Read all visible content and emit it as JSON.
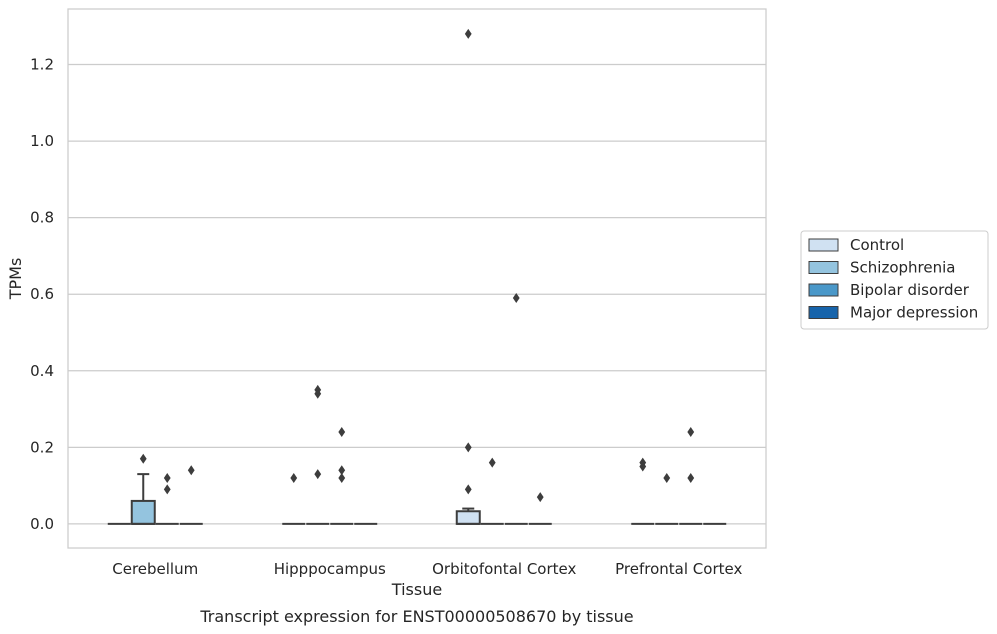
{
  "caption": "Transcript expression for ENST00000508670 by tissue",
  "chart_data": {
    "type": "box",
    "xlabel": "Tissue",
    "ylabel": "TPMs",
    "ylim": [
      -0.063,
      1.345
    ],
    "yticks": [
      0.0,
      0.2,
      0.4,
      0.6,
      0.8,
      1.0,
      1.2
    ],
    "ytick_labels": [
      "0.0",
      "0.2",
      "0.4",
      "0.6",
      "0.8",
      "1.0",
      "1.2"
    ],
    "grid": "horizontal",
    "legend_position": "right",
    "categories": [
      "Cerebellum",
      "Hipppocampus",
      "Orbitofontal Cortex",
      "Prefrontal Cortex"
    ],
    "series": [
      {
        "name": "Control",
        "color": "#d0e1f2",
        "boxes": [
          {
            "q1": 0,
            "median": 0,
            "q3": 0,
            "whislo": 0,
            "whishi": 0,
            "fliers": []
          },
          {
            "q1": 0,
            "median": 0,
            "q3": 0,
            "whislo": 0,
            "whishi": 0,
            "fliers": [
              0.12
            ]
          },
          {
            "q1": 0,
            "median": 0,
            "q3": 0.033,
            "whislo": 0,
            "whishi": 0.04,
            "fliers": [
              1.28,
              0.2,
              0.09
            ]
          },
          {
            "q1": 0,
            "median": 0,
            "q3": 0,
            "whislo": 0,
            "whishi": 0,
            "fliers": [
              0.16,
              0.15
            ]
          }
        ]
      },
      {
        "name": "Schizophrenia",
        "color": "#94c4df",
        "boxes": [
          {
            "q1": 0,
            "median": 0,
            "q3": 0.06,
            "whislo": 0,
            "whishi": 0.13,
            "fliers": [
              0.17
            ]
          },
          {
            "q1": 0,
            "median": 0,
            "q3": 0,
            "whislo": 0,
            "whishi": 0,
            "fliers": [
              0.35,
              0.34,
              0.13
            ]
          },
          {
            "q1": 0,
            "median": 0,
            "q3": 0,
            "whislo": 0,
            "whishi": 0,
            "fliers": [
              0.16
            ]
          },
          {
            "q1": 0,
            "median": 0,
            "q3": 0,
            "whislo": 0,
            "whishi": 0,
            "fliers": [
              0.12
            ]
          }
        ]
      },
      {
        "name": "Bipolar disorder",
        "color": "#4a98c9",
        "boxes": [
          {
            "q1": 0,
            "median": 0,
            "q3": 0,
            "whislo": 0,
            "whishi": 0,
            "fliers": [
              0.12,
              0.09
            ]
          },
          {
            "q1": 0,
            "median": 0,
            "q3": 0,
            "whislo": 0,
            "whishi": 0,
            "fliers": [
              0.24,
              0.14,
              0.12
            ]
          },
          {
            "q1": 0,
            "median": 0,
            "q3": 0,
            "whislo": 0,
            "whishi": 0,
            "fliers": [
              0.59
            ]
          },
          {
            "q1": 0,
            "median": 0,
            "q3": 0,
            "whislo": 0,
            "whishi": 0,
            "fliers": [
              0.24,
              0.12
            ]
          }
        ]
      },
      {
        "name": "Major depression",
        "color": "#1764ab",
        "boxes": [
          {
            "q1": 0,
            "median": 0,
            "q3": 0,
            "whislo": 0,
            "whishi": 0,
            "fliers": [
              0.14
            ]
          },
          {
            "q1": 0,
            "median": 0,
            "q3": 0,
            "whislo": 0,
            "whishi": 0,
            "fliers": []
          },
          {
            "q1": 0,
            "median": 0,
            "q3": 0,
            "whislo": 0,
            "whishi": 0,
            "fliers": [
              0.07
            ]
          },
          {
            "q1": 0,
            "median": 0,
            "q3": 0,
            "whislo": 0,
            "whishi": 0,
            "fliers": []
          }
        ]
      }
    ]
  }
}
